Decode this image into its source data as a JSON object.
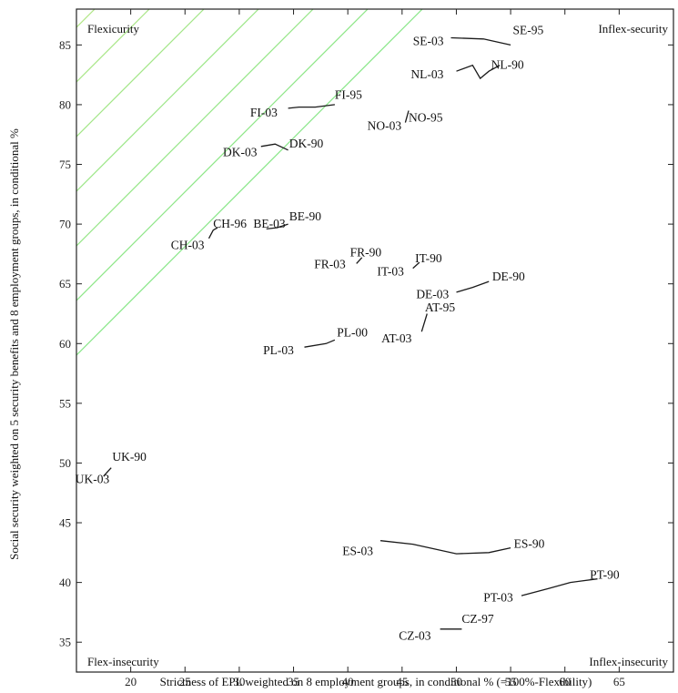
{
  "chart_data": {
    "type": "line",
    "title": "",
    "xlabel": "Strictness of EPL weighted on 8 employment groups, in conditional % (=100%-Flexibility)",
    "ylabel": "Social security weighted on 5 security benefits and 8 employment groups, in conditional %",
    "xlim": [
      15,
      70
    ],
    "ylim": [
      32.5,
      88
    ],
    "xticks": [
      20,
      25,
      30,
      35,
      40,
      45,
      50,
      55,
      60,
      65
    ],
    "yticks": [
      35,
      40,
      45,
      50,
      55,
      60,
      65,
      70,
      75,
      80,
      85
    ],
    "grid": false,
    "background_lines": "diagonal iso-lines, red/orange (lower-left) to green (upper-right)",
    "quadrant_labels": {
      "top_left": "Flexicurity",
      "top_right": "Inflex-security",
      "bottom_left": "Flex-insecurity",
      "bottom_right": "Inflex-insecurity"
    },
    "series": [
      {
        "name": "SE",
        "x": [
          49.5,
          52.5,
          55.0
        ],
        "y": [
          85.6,
          85.5,
          85.0
        ]
      },
      {
        "name": "NL",
        "x": [
          50.0,
          51.5,
          52.2,
          53.0,
          54.0
        ],
        "y": [
          82.8,
          83.3,
          82.2,
          82.8,
          83.3
        ]
      },
      {
        "name": "FI",
        "x": [
          38.8,
          37.0,
          35.5,
          34.5
        ],
        "y": [
          80.0,
          79.8,
          79.8,
          79.7
        ]
      },
      {
        "name": "NO",
        "x": [
          45.3,
          45.6
        ],
        "y": [
          78.5,
          79.5
        ]
      },
      {
        "name": "DK",
        "x": [
          32.0,
          33.3,
          34.5
        ],
        "y": [
          76.5,
          76.7,
          76.2
        ]
      },
      {
        "name": "CH",
        "x": [
          27.2,
          27.6,
          28.0
        ],
        "y": [
          68.8,
          69.5,
          69.7
        ]
      },
      {
        "name": "BE",
        "x": [
          32.5,
          33.5,
          34.5
        ],
        "y": [
          69.6,
          69.7,
          70.0
        ]
      },
      {
        "name": "FR",
        "x": [
          40.8,
          41.3
        ],
        "y": [
          66.7,
          67.2
        ]
      },
      {
        "name": "IT",
        "x": [
          46.0,
          46.6
        ],
        "y": [
          66.3,
          66.8
        ]
      },
      {
        "name": "DE",
        "x": [
          50.0,
          51.5,
          53.0
        ],
        "y": [
          64.3,
          64.7,
          65.2
        ]
      },
      {
        "name": "AT",
        "x": [
          46.8,
          47.3
        ],
        "y": [
          61.0,
          62.5
        ]
      },
      {
        "name": "PL",
        "x": [
          36.0,
          38.0,
          38.8
        ],
        "y": [
          59.7,
          60.0,
          60.3
        ]
      },
      {
        "name": "UK",
        "x": [
          17.5,
          17.9,
          18.2
        ],
        "y": [
          48.9,
          49.3,
          49.6
        ]
      },
      {
        "name": "ES",
        "x": [
          43.0,
          46.0,
          50.0,
          53.0,
          55.0
        ],
        "y": [
          43.5,
          43.2,
          42.4,
          42.5,
          42.9
        ]
      },
      {
        "name": "PT",
        "x": [
          56.0,
          58.5,
          60.5,
          63.0
        ],
        "y": [
          38.9,
          39.5,
          40.0,
          40.3
        ]
      },
      {
        "name": "CZ",
        "x": [
          48.5,
          50.5
        ],
        "y": [
          36.1,
          36.1
        ]
      }
    ],
    "point_labels": [
      {
        "text": "SE-03",
        "x": 46.0,
        "y": 85.0,
        "anchor": "start"
      },
      {
        "text": "SE-95",
        "x": 55.2,
        "y": 85.9,
        "anchor": "start"
      },
      {
        "text": "NL-03",
        "x": 45.8,
        "y": 82.2,
        "anchor": "start"
      },
      {
        "text": "NL-90",
        "x": 53.2,
        "y": 83.0,
        "anchor": "start"
      },
      {
        "text": "FI-03",
        "x": 31.0,
        "y": 79.0,
        "anchor": "start"
      },
      {
        "text": "FI-95",
        "x": 38.8,
        "y": 80.5,
        "anchor": "start"
      },
      {
        "text": "NO-03",
        "x": 41.8,
        "y": 77.9,
        "anchor": "start"
      },
      {
        "text": "NO-95",
        "x": 45.6,
        "y": 78.6,
        "anchor": "start"
      },
      {
        "text": "DK-03",
        "x": 28.5,
        "y": 75.7,
        "anchor": "start"
      },
      {
        "text": "DK-90",
        "x": 34.6,
        "y": 76.4,
        "anchor": "start"
      },
      {
        "text": "CH-03",
        "x": 23.7,
        "y": 67.9,
        "anchor": "start"
      },
      {
        "text": "CH-96",
        "x": 27.6,
        "y": 69.7,
        "anchor": "start"
      },
      {
        "text": "BE-03",
        "x": 31.3,
        "y": 69.7,
        "anchor": "start"
      },
      {
        "text": "BE-90",
        "x": 34.6,
        "y": 70.3,
        "anchor": "start"
      },
      {
        "text": "FR-03",
        "x": 36.9,
        "y": 66.3,
        "anchor": "start"
      },
      {
        "text": "FR-90",
        "x": 40.2,
        "y": 67.3,
        "anchor": "start"
      },
      {
        "text": "IT-03",
        "x": 42.7,
        "y": 65.7,
        "anchor": "start"
      },
      {
        "text": "IT-90",
        "x": 46.2,
        "y": 66.8,
        "anchor": "start"
      },
      {
        "text": "DE-03",
        "x": 46.3,
        "y": 63.8,
        "anchor": "start"
      },
      {
        "text": "DE-90",
        "x": 53.3,
        "y": 65.3,
        "anchor": "start"
      },
      {
        "text": "AT-03",
        "x": 43.1,
        "y": 60.1,
        "anchor": "start"
      },
      {
        "text": "AT-95",
        "x": 47.1,
        "y": 62.7,
        "anchor": "start"
      },
      {
        "text": "PL-03",
        "x": 32.2,
        "y": 59.1,
        "anchor": "start"
      },
      {
        "text": "PL-00",
        "x": 39.0,
        "y": 60.6,
        "anchor": "start"
      },
      {
        "text": "UK-03",
        "x": 14.9,
        "y": 48.3,
        "anchor": "start"
      },
      {
        "text": "UK-90",
        "x": 18.3,
        "y": 50.2,
        "anchor": "start"
      },
      {
        "text": "ES-03",
        "x": 39.5,
        "y": 42.3,
        "anchor": "start"
      },
      {
        "text": "ES-90",
        "x": 55.3,
        "y": 42.9,
        "anchor": "start"
      },
      {
        "text": "PT-03",
        "x": 52.5,
        "y": 38.4,
        "anchor": "start"
      },
      {
        "text": "PT-90",
        "x": 62.3,
        "y": 40.3,
        "anchor": "start"
      },
      {
        "text": "CZ-03",
        "x": 44.7,
        "y": 35.2,
        "anchor": "start"
      },
      {
        "text": "CZ-97",
        "x": 50.5,
        "y": 36.6,
        "anchor": "start"
      }
    ]
  }
}
